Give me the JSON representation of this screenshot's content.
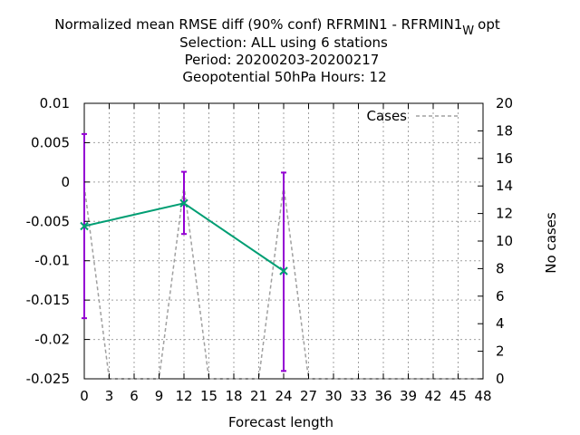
{
  "chart_data": {
    "type": "line",
    "title_lines": [
      "Normalized mean RMSE diff (90% conf) RFRMIN1 - RFRMIN1",
      "Selection: ALL using     6 stations",
      "Period: 20200203-20200217",
      "Geopotential 50hPa   Hours:  12"
    ],
    "title_subscript": "W",
    "title_suffix": "opt",
    "xlabel": "Forecast length",
    "ylabel": "",
    "y2label": "No cases",
    "xlim": [
      0,
      48
    ],
    "ylim": [
      -0.025,
      0.01
    ],
    "y2lim": [
      0,
      20
    ],
    "x_ticks": [
      "0",
      "3",
      "6",
      "9",
      "12",
      "15",
      "18",
      "21",
      "24",
      "27",
      "30",
      "33",
      "36",
      "39",
      "42",
      "45",
      "48"
    ],
    "y_ticks": [
      "0.01",
      "0.005",
      "0",
      "-0.005",
      "-0.01",
      "-0.015",
      "-0.02",
      "-0.025"
    ],
    "y2_ticks": [
      "20",
      "18",
      "16",
      "14",
      "12",
      "10",
      "8",
      "6",
      "4",
      "2",
      "0"
    ],
    "grid": true,
    "legend_position": "top-right",
    "series": [
      {
        "name": "",
        "color": "#009e73",
        "x": [
          0,
          12,
          24
        ],
        "y": [
          -0.0056,
          -0.0027,
          -0.0113
        ],
        "err_low": [
          -0.0173,
          -0.0066,
          -0.024
        ],
        "err_high": [
          0.0061,
          0.0013,
          0.0012
        ],
        "err_color": "#9400d3"
      }
    ],
    "cases_series": {
      "name": "Cases",
      "color": "#a0a0a0",
      "x": [
        0,
        3,
        9,
        12,
        15,
        21,
        24,
        27,
        48
      ],
      "y": [
        14,
        0,
        0,
        14,
        0,
        0,
        14,
        0,
        0
      ]
    }
  }
}
